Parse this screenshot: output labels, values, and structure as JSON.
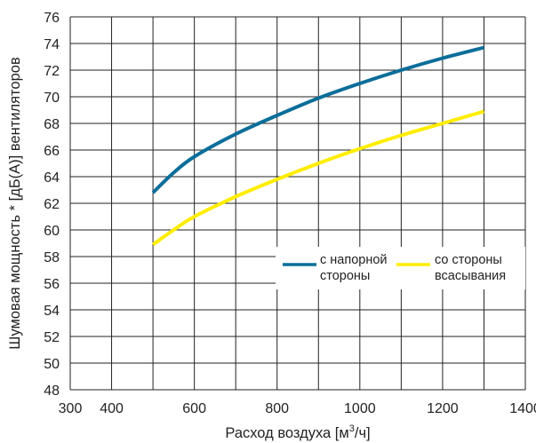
{
  "chart_data": {
    "type": "line",
    "xlabel": "Расход воздуха [м³/ч]",
    "ylabel": "Шумовая мощность * [дБ(А)] вентиляторов",
    "xlim": [
      300,
      1400
    ],
    "ylim": [
      48,
      76
    ],
    "xticks": [
      300,
      400,
      600,
      800,
      1000,
      1200,
      1400
    ],
    "xgrid": [
      300,
      400,
      500,
      600,
      700,
      800,
      900,
      1000,
      1100,
      1200,
      1300,
      1400
    ],
    "yticks": [
      48,
      50,
      52,
      54,
      56,
      58,
      60,
      62,
      64,
      66,
      68,
      70,
      72,
      74,
      76
    ],
    "grid": true,
    "legend_position": "right-middle",
    "series": [
      {
        "name": "с напорной стороны",
        "legend_lines": [
          "с напорной",
          "стороны"
        ],
        "color": "#0b6e9a",
        "x": [
          500,
          550,
          600,
          700,
          800,
          900,
          1000,
          1100,
          1200,
          1300
        ],
        "y": [
          62.8,
          64.3,
          65.5,
          67.2,
          68.6,
          69.9,
          71.0,
          72.0,
          72.9,
          73.7
        ]
      },
      {
        "name": "со стороны всасывания",
        "legend_lines": [
          "со стороны",
          "всасывания"
        ],
        "color": "#ffed00",
        "x": [
          500,
          550,
          600,
          700,
          800,
          900,
          1000,
          1100,
          1200,
          1300
        ],
        "y": [
          58.9,
          60.0,
          61.0,
          62.5,
          63.8,
          65.0,
          66.1,
          67.1,
          68.0,
          68.9
        ]
      }
    ]
  }
}
